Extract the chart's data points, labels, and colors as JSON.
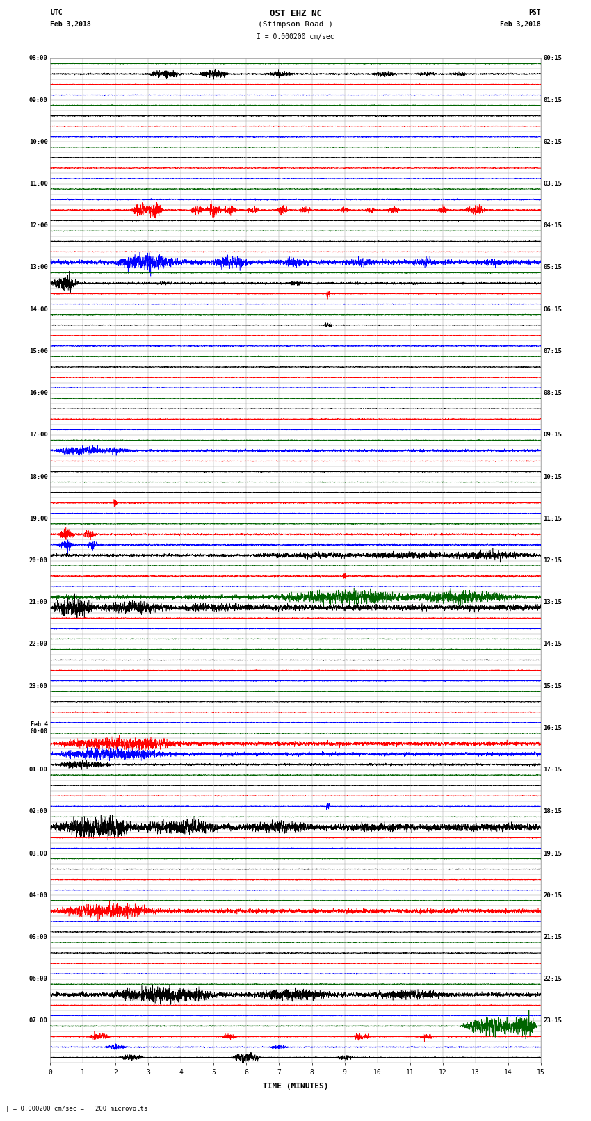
{
  "title_line1": "OST EHZ NC",
  "title_line2": "(Stimpson Road )",
  "title_line3": "I = 0.000200 cm/sec",
  "xlabel": "TIME (MINUTES)",
  "bottom_note": "| = 0.000200 cm/sec =   200 microvolts",
  "n_rows": 96,
  "x_min": 0,
  "x_max": 15,
  "background_color": "#ffffff",
  "grid_color": "#999999",
  "seed": 42,
  "utc_labels": [
    [
      "08:00",
      0
    ],
    [
      "09:00",
      4
    ],
    [
      "10:00",
      8
    ],
    [
      "11:00",
      12
    ],
    [
      "12:00",
      16
    ],
    [
      "13:00",
      20
    ],
    [
      "14:00",
      24
    ],
    [
      "15:00",
      28
    ],
    [
      "16:00",
      32
    ],
    [
      "17:00",
      36
    ],
    [
      "18:00",
      40
    ],
    [
      "19:00",
      44
    ],
    [
      "20:00",
      48
    ],
    [
      "21:00",
      52
    ],
    [
      "22:00",
      56
    ],
    [
      "23:00",
      60
    ],
    [
      "Feb 4\n00:00",
      64
    ],
    [
      "01:00",
      68
    ],
    [
      "02:00",
      72
    ],
    [
      "03:00",
      76
    ],
    [
      "04:00",
      80
    ],
    [
      "05:00",
      84
    ],
    [
      "06:00",
      88
    ],
    [
      "07:00",
      92
    ]
  ],
  "pst_labels": [
    [
      "00:15",
      0
    ],
    [
      "01:15",
      4
    ],
    [
      "02:15",
      8
    ],
    [
      "03:15",
      12
    ],
    [
      "04:15",
      16
    ],
    [
      "05:15",
      20
    ],
    [
      "06:15",
      24
    ],
    [
      "07:15",
      28
    ],
    [
      "08:15",
      32
    ],
    [
      "09:15",
      36
    ],
    [
      "10:15",
      40
    ],
    [
      "11:15",
      44
    ],
    [
      "12:15",
      48
    ],
    [
      "13:15",
      52
    ],
    [
      "14:15",
      56
    ],
    [
      "15:15",
      60
    ],
    [
      "16:15",
      64
    ],
    [
      "17:15",
      68
    ],
    [
      "18:15",
      72
    ],
    [
      "19:15",
      76
    ],
    [
      "20:15",
      80
    ],
    [
      "21:15",
      84
    ],
    [
      "22:15",
      88
    ],
    [
      "23:15",
      92
    ]
  ]
}
